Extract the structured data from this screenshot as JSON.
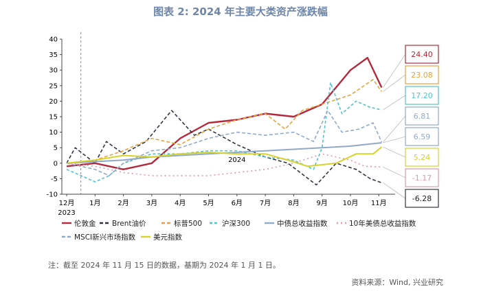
{
  "title": "图表 2:  2024 年主要大类资产涨跌幅",
  "note": "注：截至 2024 年 11 月 15 日的数据，基期为 2024 年 1 月 1 日。",
  "source": "资料来源：Wind, 兴业研究",
  "chart_data": {
    "type": "line",
    "ylim": [
      -10,
      40
    ],
    "y_ticks": [
      "40",
      "35",
      "30",
      "25",
      "20",
      "15",
      "10",
      "5",
      "0",
      "-5",
      "-10"
    ],
    "x_ticks": [
      "12月",
      "1月",
      "2月",
      "3月",
      "4月",
      "5月",
      "6月",
      "7月",
      "8月",
      "9月",
      "10月",
      "11月"
    ],
    "x_year_labels": [
      "2023",
      "2024"
    ],
    "base_marker": "2024-01-01",
    "series": [
      {
        "name": "伦敦金",
        "color": "#b5273a",
        "dash": "",
        "width": 2.4,
        "end_label": "24.40",
        "points": [
          [
            0,
            -1
          ],
          [
            1,
            0
          ],
          [
            2,
            -2
          ],
          [
            3,
            0
          ],
          [
            4,
            8
          ],
          [
            5,
            13
          ],
          [
            6,
            14
          ],
          [
            7,
            16
          ],
          [
            8,
            15
          ],
          [
            9,
            19
          ],
          [
            10,
            30
          ],
          [
            10.6,
            34
          ],
          [
            11.1,
            24.4
          ]
        ]
      },
      {
        "name": "Brent油价",
        "color": "#2f3540",
        "dash": "5,3",
        "width": 1.6,
        "end_label": "-6.28",
        "points": [
          [
            0,
            0
          ],
          [
            0.3,
            5
          ],
          [
            1,
            0
          ],
          [
            1.4,
            7
          ],
          [
            2,
            3
          ],
          [
            2.8,
            7
          ],
          [
            3.7,
            17
          ],
          [
            4.5,
            9
          ],
          [
            5,
            11
          ],
          [
            6,
            6
          ],
          [
            7,
            2
          ],
          [
            7.8,
            0
          ],
          [
            8.8,
            -7
          ],
          [
            9.5,
            0
          ],
          [
            10.2,
            -2
          ],
          [
            10.7,
            -5
          ],
          [
            11.1,
            -6.3
          ]
        ]
      },
      {
        "name": "标普500",
        "color": "#e9a23b",
        "dash": "5,3",
        "width": 1.6,
        "end_label": "23.08",
        "points": [
          [
            0,
            0
          ],
          [
            1,
            1
          ],
          [
            2,
            4
          ],
          [
            3,
            8
          ],
          [
            4,
            6
          ],
          [
            5,
            11
          ],
          [
            6,
            14
          ],
          [
            7,
            16
          ],
          [
            7.7,
            11
          ],
          [
            8.3,
            17
          ],
          [
            9,
            19
          ],
          [
            10,
            22
          ],
          [
            10.8,
            27
          ],
          [
            11.1,
            23.1
          ]
        ]
      },
      {
        "name": "沪深300",
        "color": "#4fc3cf",
        "dash": "4,3",
        "width": 1.6,
        "end_label": "17.20",
        "points": [
          [
            0,
            -2
          ],
          [
            1,
            -6
          ],
          [
            1.5,
            -4
          ],
          [
            2,
            0
          ],
          [
            3,
            3
          ],
          [
            4,
            3
          ],
          [
            5,
            4
          ],
          [
            6,
            4
          ],
          [
            7,
            2
          ],
          [
            8,
            1
          ],
          [
            8.7,
            -2
          ],
          [
            9,
            5
          ],
          [
            9.3,
            26
          ],
          [
            9.7,
            16
          ],
          [
            10.2,
            20
          ],
          [
            10.7,
            18
          ],
          [
            11.1,
            17.2
          ]
        ]
      },
      {
        "name": "中债总收益指数",
        "color": "#8fa9c9",
        "dash": "",
        "width": 2.0,
        "end_label": "6.59",
        "points": [
          [
            0,
            0
          ],
          [
            1,
            0.5
          ],
          [
            2,
            1
          ],
          [
            3,
            2
          ],
          [
            4,
            2.5
          ],
          [
            5,
            3
          ],
          [
            6,
            3.5
          ],
          [
            7,
            4
          ],
          [
            8,
            4.5
          ],
          [
            9,
            5
          ],
          [
            10,
            5.5
          ],
          [
            11.1,
            6.6
          ]
        ]
      },
      {
        "name": "10年美债总收益指数",
        "color": "#e596a8",
        "dash": "2,4",
        "width": 1.6,
        "end_label": "-1.17",
        "points": [
          [
            0,
            0
          ],
          [
            1,
            -1
          ],
          [
            2,
            -3
          ],
          [
            3,
            -4
          ],
          [
            4,
            -4
          ],
          [
            5,
            -4
          ],
          [
            6,
            -3
          ],
          [
            7,
            -2
          ],
          [
            8,
            0
          ],
          [
            9,
            3
          ],
          [
            10,
            1
          ],
          [
            10.5,
            -1
          ],
          [
            11.1,
            -1.2
          ]
        ]
      },
      {
        "name": "MSCI新兴市场指数",
        "color": "#8fa9c9",
        "dash": "5,3",
        "width": 1.6,
        "end_label": "6.81",
        "points": [
          [
            0,
            0
          ],
          [
            1,
            -2
          ],
          [
            1.5,
            -4
          ],
          [
            2,
            0
          ],
          [
            3,
            4
          ],
          [
            4,
            5
          ],
          [
            5,
            8
          ],
          [
            6,
            10
          ],
          [
            7,
            9
          ],
          [
            8,
            10
          ],
          [
            8.7,
            7
          ],
          [
            9.2,
            17
          ],
          [
            9.7,
            10
          ],
          [
            10.3,
            11
          ],
          [
            10.8,
            13
          ],
          [
            11.1,
            6.8
          ]
        ]
      },
      {
        "name": "美元指数",
        "color": "#d8d12a",
        "dash": "",
        "width": 2.0,
        "end_label": "5.24",
        "points": [
          [
            0,
            0
          ],
          [
            1,
            1
          ],
          [
            2,
            2.5
          ],
          [
            3,
            2
          ],
          [
            4,
            3
          ],
          [
            5,
            3.5
          ],
          [
            6,
            3
          ],
          [
            7,
            3
          ],
          [
            7.8,
            1
          ],
          [
            8.5,
            -1
          ],
          [
            9.5,
            0
          ],
          [
            10.2,
            3
          ],
          [
            10.8,
            3
          ],
          [
            11.1,
            5.2
          ]
        ]
      }
    ]
  }
}
